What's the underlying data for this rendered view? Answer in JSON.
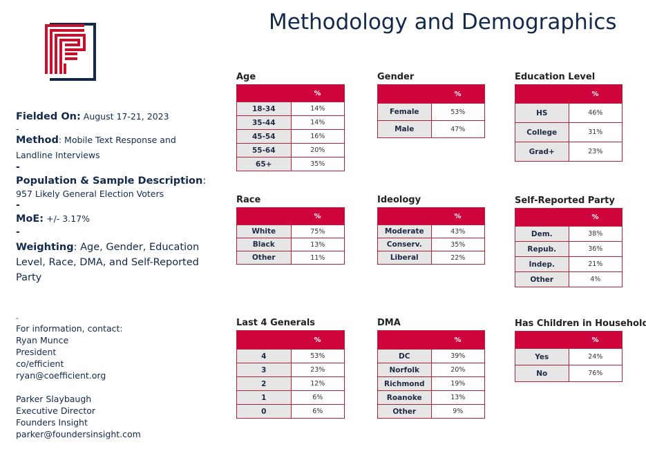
{
  "title": "Methodology and Demographics",
  "colors": {
    "accent": "#d0043c",
    "navy": "#13294b"
  },
  "left": {
    "fielded_label": "Fielded On:",
    "fielded_value": "August 17-21, 2023",
    "method_label": "Method",
    "method_value": ": Mobile Text Response and",
    "method_value2": "Landline Interviews",
    "population_label": "Population & Sample Description",
    "population_colon": ":",
    "population_value": "957 Likely General Election Voters",
    "moe_label": "MoE:",
    "moe_value": "+/- 3.17%",
    "weighting_label": "Weighting",
    "weighting_value": ": Age, Gender, Education Level, Race, DMA, and Self-Reported Party",
    "dash": "-"
  },
  "contact": {
    "dash": "-",
    "intro": "For information, contact:",
    "person1": [
      "Ryan Munce",
      "President",
      "co/efficient",
      "ryan@coefficient.org"
    ],
    "person2": [
      "Parker Slaybaugh",
      "Executive Director",
      "Founders Insight",
      "parker@foundersinsight.com"
    ]
  },
  "tables": {
    "age": {
      "label": "Age",
      "header": "%",
      "rows": [
        {
          "cat": "18-34",
          "pct": "14%"
        },
        {
          "cat": "35-44",
          "pct": "14%"
        },
        {
          "cat": "45-54",
          "pct": "16%"
        },
        {
          "cat": "55-64",
          "pct": "20%"
        },
        {
          "cat": "65+",
          "pct": "35%"
        }
      ]
    },
    "gender": {
      "label": "Gender",
      "header": "%",
      "rows": [
        {
          "cat": "Female",
          "pct": "53%"
        },
        {
          "cat": "Male",
          "pct": "47%"
        }
      ]
    },
    "education": {
      "label": "Education Level",
      "header": "%",
      "rows": [
        {
          "cat": "HS",
          "pct": "46%"
        },
        {
          "cat": "College",
          "pct": "31%"
        },
        {
          "cat": "Grad+",
          "pct": "23%"
        }
      ]
    },
    "race": {
      "label": "Race",
      "header": "%",
      "rows": [
        {
          "cat": "White",
          "pct": "75%"
        },
        {
          "cat": "Black",
          "pct": "13%"
        },
        {
          "cat": "Other",
          "pct": "11%"
        }
      ]
    },
    "ideology": {
      "label": "Ideology",
      "header": "%",
      "rows": [
        {
          "cat": "Moderate",
          "pct": "43%"
        },
        {
          "cat": "Conserv.",
          "pct": "35%"
        },
        {
          "cat": "Liberal",
          "pct": "22%"
        }
      ]
    },
    "party": {
      "label": "Self-Reported Party",
      "header": "%",
      "rows": [
        {
          "cat": "Dem.",
          "pct": "38%"
        },
        {
          "cat": "Repub.",
          "pct": "36%"
        },
        {
          "cat": "Indep.",
          "pct": "21%"
        },
        {
          "cat": "Other",
          "pct": "4%"
        }
      ]
    },
    "generals": {
      "label": "Last 4 Generals",
      "header": "%",
      "rows": [
        {
          "cat": "4",
          "pct": "53%"
        },
        {
          "cat": "3",
          "pct": "23%"
        },
        {
          "cat": "2",
          "pct": "12%"
        },
        {
          "cat": "1",
          "pct": "6%"
        },
        {
          "cat": "0",
          "pct": "6%"
        }
      ]
    },
    "dma": {
      "label": "DMA",
      "header": "%",
      "rows": [
        {
          "cat": "DC",
          "pct": "39%"
        },
        {
          "cat": "Norfolk",
          "pct": "20%"
        },
        {
          "cat": "Richmond",
          "pct": "19%"
        },
        {
          "cat": "Roanoke",
          "pct": "13%"
        },
        {
          "cat": "Other",
          "pct": "9%"
        }
      ]
    },
    "children": {
      "label": "Has Children in Household",
      "header": "%",
      "rows": [
        {
          "cat": "Yes",
          "pct": "24%"
        },
        {
          "cat": "No",
          "pct": "76%"
        }
      ]
    }
  }
}
